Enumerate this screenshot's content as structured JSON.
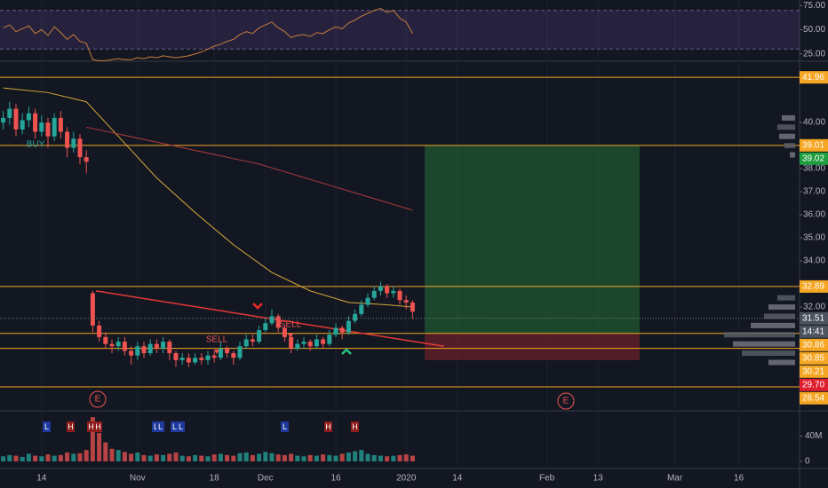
{
  "chart_data": {
    "type": "candlestick",
    "xlim": [
      -0.5,
      124.5
    ],
    "xticks": [
      {
        "value": 6,
        "label": "14"
      },
      {
        "value": 21,
        "label": "Nov"
      },
      {
        "value": 33,
        "label": "18"
      },
      {
        "value": 41,
        "label": "Dec"
      },
      {
        "value": 52,
        "label": "16"
      },
      {
        "value": 63,
        "label": "2020"
      },
      {
        "value": 71,
        "label": "14"
      },
      {
        "value": 85,
        "label": "Feb"
      },
      {
        "value": 93,
        "label": "13"
      },
      {
        "value": 105,
        "label": "Mar"
      },
      {
        "value": 115,
        "label": "16"
      }
    ],
    "ylim": [
      27.54,
      42.62
    ],
    "yticks": [
      {
        "value": 32,
        "label": "32.00"
      },
      {
        "value": 34,
        "label": "34.00"
      },
      {
        "value": 35,
        "label": "35.00"
      },
      {
        "value": 36,
        "label": "36.00"
      },
      {
        "value": 37,
        "label": "37.00"
      },
      {
        "value": 38,
        "label": "38.00"
      },
      {
        "value": 40,
        "label": "40.00"
      }
    ],
    "up_color": "#26a69a",
    "down_color": "#ef5350",
    "open": [
      40.0,
      40.2,
      40.6,
      39.7,
      40.1,
      40.4,
      39.6,
      40.0,
      39.4,
      40.2,
      39.6,
      38.9,
      39.3,
      38.5,
      32.6,
      31.2,
      30.7,
      30.4,
      30.3,
      30.5,
      30.1,
      29.9,
      30.3,
      30.0,
      30.4,
      30.2,
      30.5,
      30.0,
      29.7,
      29.8,
      29.6,
      29.8,
      29.7,
      29.9,
      29.8,
      30.2,
      30.0,
      29.8,
      30.3,
      30.6,
      30.5,
      31.0,
      31.3,
      31.6,
      31.1,
      30.7,
      30.2,
      30.4,
      30.5,
      30.3,
      30.6,
      30.4,
      30.8,
      31.1,
      30.9,
      31.4,
      31.7,
      32.1,
      32.4,
      32.7,
      32.9,
      32.6,
      32.7,
      32.3,
      32.2
    ],
    "high": [
      40.5,
      40.9,
      40.8,
      40.4,
      40.7,
      40.6,
      40.3,
      40.2,
      40.4,
      40.5,
      39.8,
      39.6,
      39.5,
      38.8,
      32.7,
      31.4,
      30.9,
      30.6,
      30.7,
      30.7,
      30.3,
      30.5,
      30.5,
      30.6,
      30.6,
      30.7,
      30.6,
      30.1,
      30.0,
      30.0,
      30.0,
      30.0,
      30.1,
      30.1,
      30.5,
      30.3,
      30.1,
      30.5,
      30.8,
      30.8,
      31.2,
      31.5,
      31.9,
      31.7,
      31.2,
      30.8,
      30.6,
      30.7,
      30.6,
      30.8,
      30.7,
      31.0,
      31.3,
      31.2,
      31.6,
      31.9,
      32.3,
      32.6,
      32.9,
      33.1,
      33.0,
      32.9,
      32.8,
      32.5,
      32.3
    ],
    "low": [
      39.7,
      39.9,
      39.4,
      39.5,
      39.8,
      39.3,
      39.4,
      38.9,
      39.2,
      39.3,
      38.5,
      38.7,
      38.2,
      37.8,
      30.9,
      30.5,
      30.2,
      30.0,
      30.1,
      29.9,
      29.5,
      29.7,
      29.8,
      29.9,
      30.0,
      30.0,
      29.7,
      29.4,
      29.5,
      29.4,
      29.5,
      29.5,
      29.5,
      29.6,
      29.7,
      29.8,
      29.5,
      29.7,
      30.2,
      30.3,
      30.4,
      30.9,
      31.2,
      30.9,
      30.5,
      30.0,
      30.1,
      30.2,
      30.1,
      30.2,
      30.2,
      30.3,
      30.7,
      30.6,
      30.8,
      31.3,
      31.6,
      32.0,
      32.3,
      32.5,
      32.4,
      32.4,
      32.1,
      31.9,
      31.5
    ],
    "close": [
      40.2,
      40.6,
      39.7,
      40.1,
      40.4,
      39.6,
      40.0,
      39.4,
      40.2,
      39.6,
      38.9,
      39.3,
      38.5,
      38.3,
      31.2,
      30.7,
      30.4,
      30.3,
      30.5,
      30.1,
      29.9,
      30.3,
      30.0,
      30.4,
      30.2,
      30.5,
      30.0,
      29.7,
      29.8,
      29.6,
      29.8,
      29.7,
      29.9,
      29.8,
      30.2,
      30.0,
      29.8,
      30.3,
      30.6,
      30.5,
      31.0,
      31.3,
      31.6,
      31.1,
      30.7,
      30.2,
      30.4,
      30.5,
      30.3,
      30.6,
      30.4,
      30.8,
      31.1,
      30.9,
      31.4,
      31.7,
      32.1,
      32.4,
      32.7,
      32.9,
      32.6,
      32.7,
      32.3,
      32.2,
      31.8
    ],
    "moving_averages": [
      {
        "color": "#d9a93a",
        "x": [
          0,
          7,
          13,
          18,
          24,
          30,
          36,
          42,
          48,
          54,
          60,
          64
        ],
        "values": [
          41.5,
          41.3,
          40.9,
          39.4,
          37.6,
          36.1,
          34.7,
          33.5,
          32.7,
          32.2,
          32.1,
          32.0
        ]
      },
      {
        "color": "#a63a3a",
        "x": [
          13,
          40,
          64
        ],
        "values": [
          39.8,
          38.2,
          36.2
        ]
      }
    ],
    "levels": {
      "values": [
        41.96,
        39.01,
        32.89,
        30.86,
        30.21,
        28.54
      ],
      "color": "#f5a623"
    },
    "price_tags": [
      {
        "value": 41.96,
        "label": "41.96",
        "color": "#f5a623"
      },
      {
        "value": 39.01,
        "label": "39.01",
        "color": "#f5a623"
      },
      {
        "value": 39.02,
        "label": "39.02",
        "color": "#1e9e3e"
      },
      {
        "value": 32.89,
        "label": "32.89",
        "color": "#f5a623"
      },
      {
        "value": 31.51,
        "label": "31.51",
        "color": "#4c525e",
        "timer": "14:41"
      },
      {
        "value": 30.86,
        "label": "30.86",
        "color": "#f5a623"
      },
      {
        "value": 30.85,
        "label": "30.85",
        "color": "#f5a623"
      },
      {
        "value": 30.21,
        "label": "30.21",
        "color": "#f5a623"
      },
      {
        "value": 29.7,
        "label": "29.70",
        "color": "#e0202e"
      },
      {
        "value": 28.54,
        "label": "28.54",
        "color": "#f5a623"
      }
    ],
    "position": {
      "entry": 30.85,
      "target": 39.02,
      "stop": 29.7,
      "x": [
        65.9,
        99.5
      ]
    },
    "trendline": {
      "x": [
        14.5,
        68.9
      ],
      "values": [
        32.7,
        30.3
      ],
      "color": "#e53935"
    },
    "signals": [
      "BUY",
      "SELL",
      "SELL"
    ],
    "earnings": [
      "E",
      "E"
    ],
    "flags": [
      "L",
      "H",
      "H",
      "H",
      "L",
      "L",
      "L",
      "L",
      "L",
      "H",
      "H"
    ],
    "rsi": {
      "values": [
        52,
        55,
        48,
        51,
        54,
        46,
        50,
        44,
        53,
        47,
        40,
        45,
        38,
        36,
        19,
        18,
        18,
        19,
        20,
        19,
        19,
        21,
        20,
        22,
        21,
        23,
        22,
        21,
        22,
        23,
        25,
        27,
        30,
        33,
        35,
        38,
        40,
        45,
        48,
        46,
        52,
        55,
        58,
        52,
        48,
        42,
        44,
        45,
        43,
        47,
        46,
        50,
        53,
        51,
        57,
        60,
        64,
        67,
        70,
        72,
        68,
        70,
        62,
        58,
        46
      ],
      "ylim": [
        18.3,
        80.8
      ],
      "band": [
        30,
        70
      ],
      "color": "#c77c3a",
      "yticks": [
        {
          "value": 75,
          "label": "75.00"
        },
        {
          "value": 50,
          "label": "50.00"
        },
        {
          "value": 25,
          "label": "25.00"
        }
      ]
    },
    "volume": {
      "values": [
        8,
        10,
        9,
        7,
        12,
        9,
        8,
        11,
        9,
        10,
        14,
        12,
        13,
        18,
        70,
        45,
        30,
        20,
        18,
        15,
        12,
        14,
        10,
        9,
        11,
        10,
        12,
        14,
        9,
        8,
        10,
        9,
        8,
        11,
        12,
        10,
        9,
        13,
        14,
        10,
        12,
        15,
        13,
        11,
        10,
        12,
        9,
        8,
        10,
        9,
        11,
        10,
        9,
        12,
        14,
        16,
        18,
        12,
        10,
        9,
        8,
        9,
        10,
        11,
        9
      ],
      "ylim": [
        0,
        80
      ],
      "yticks": [
        {
          "value": 40,
          "label": "40M"
        },
        0
      ]
    },
    "volume_profile": {
      "prices": [
        40.2,
        39.8,
        39.4,
        39.0,
        38.6,
        32.4,
        32.0,
        31.6,
        31.2,
        30.8,
        30.4,
        30.0,
        29.6
      ],
      "values": [
        15,
        20,
        18,
        12,
        6,
        20,
        30,
        35,
        50,
        80,
        70,
        60,
        30
      ],
      "xlim": [
        0,
        100
      ]
    }
  }
}
